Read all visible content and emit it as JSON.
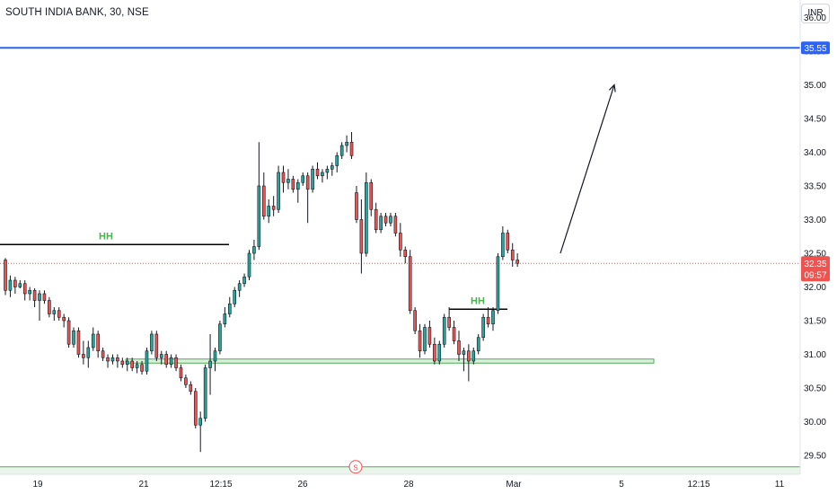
{
  "header": {
    "symbol_title": "SOUTH INDIA BANK, 30, NSE",
    "currency": "INR"
  },
  "chart_data": {
    "type": "candlestick",
    "symbol": "SOUTH INDIA BANK",
    "interval": "30",
    "exchange": "NSE",
    "y_ticks": [
      "36.00",
      "35.50",
      "35.00",
      "34.50",
      "34.00",
      "33.50",
      "33.00",
      "32.50",
      "32.00",
      "31.50",
      "31.00",
      "30.50",
      "30.00",
      "29.50"
    ],
    "x_ticks": [
      "19",
      "21",
      "12:15",
      "26",
      "28",
      "Mar",
      "5",
      "12:15",
      "11"
    ],
    "ylim": [
      29.22,
      36.26
    ],
    "colors": {
      "up": "#26a69a",
      "down": "#ef5350",
      "resistance": "#2962ff",
      "support": "#4caf50",
      "level_line": "#000000",
      "price_tag": "#ef5350"
    },
    "resistance_level": {
      "value": 35.55,
      "label": "35.55"
    },
    "current_price": {
      "value": 32.35,
      "label": "32.35",
      "countdown": "09:57"
    },
    "hh_levels": [
      {
        "label": "HH",
        "value": 32.63
      },
      {
        "label": "HH",
        "value": 31.67
      }
    ],
    "support_zone": {
      "low": 30.87,
      "high": 30.93
    },
    "lower_zone": {
      "value": 29.33,
      "marker": "S"
    },
    "projection_arrow": {
      "from": 32.5,
      "to": 35.0
    },
    "candles": [
      [
        32.4,
        32.43,
        31.88,
        31.95
      ],
      [
        31.95,
        32.17,
        31.85,
        32.1
      ],
      [
        32.1,
        32.15,
        31.9,
        32.0
      ],
      [
        32.0,
        32.1,
        31.98,
        32.05
      ],
      [
        32.05,
        32.1,
        31.8,
        31.9
      ],
      [
        31.9,
        32.0,
        31.8,
        31.95
      ],
      [
        31.95,
        31.98,
        31.7,
        31.8
      ],
      [
        31.8,
        31.95,
        31.5,
        31.9
      ],
      [
        31.9,
        31.95,
        31.75,
        31.8
      ],
      [
        31.8,
        31.85,
        31.55,
        31.6
      ],
      [
        31.6,
        31.7,
        31.5,
        31.65
      ],
      [
        31.65,
        31.7,
        31.5,
        31.55
      ],
      [
        31.55,
        31.6,
        31.4,
        31.5
      ],
      [
        31.5,
        31.55,
        31.1,
        31.15
      ],
      [
        31.15,
        31.4,
        31.1,
        31.35
      ],
      [
        31.35,
        31.4,
        30.95,
        31.0
      ],
      [
        31.0,
        31.2,
        30.85,
        30.95
      ],
      [
        30.95,
        31.2,
        30.8,
        31.1
      ],
      [
        31.1,
        31.4,
        31.05,
        31.3
      ],
      [
        31.3,
        31.35,
        30.95,
        31.05
      ],
      [
        31.05,
        31.1,
        30.9,
        30.95
      ],
      [
        30.95,
        31.0,
        30.8,
        30.9
      ],
      [
        30.9,
        31.0,
        30.85,
        30.95
      ],
      [
        30.95,
        31.0,
        30.8,
        30.9
      ],
      [
        30.9,
        30.95,
        30.8,
        30.85
      ],
      [
        30.85,
        30.95,
        30.75,
        30.9
      ],
      [
        30.9,
        30.95,
        30.75,
        30.8
      ],
      [
        30.8,
        30.9,
        30.72,
        30.85
      ],
      [
        30.85,
        30.9,
        30.7,
        30.75
      ],
      [
        30.75,
        31.1,
        30.7,
        31.05
      ],
      [
        31.05,
        31.35,
        31.0,
        31.3
      ],
      [
        31.3,
        31.35,
        30.9,
        30.95
      ],
      [
        30.95,
        31.05,
        30.85,
        31.0
      ],
      [
        31.0,
        31.05,
        30.8,
        30.85
      ],
      [
        30.85,
        31.0,
        30.8,
        30.95
      ],
      [
        30.95,
        31.0,
        30.75,
        30.8
      ],
      [
        30.8,
        30.85,
        30.6,
        30.65
      ],
      [
        30.65,
        30.7,
        30.5,
        30.55
      ],
      [
        30.55,
        30.6,
        30.4,
        30.45
      ],
      [
        30.45,
        30.5,
        29.9,
        29.95
      ],
      [
        29.95,
        30.15,
        29.55,
        30.05
      ],
      [
        30.05,
        30.85,
        30.0,
        30.8
      ],
      [
        30.8,
        31.3,
        30.4,
        30.9
      ],
      [
        30.9,
        31.1,
        30.75,
        31.05
      ],
      [
        31.05,
        31.5,
        31.0,
        31.45
      ],
      [
        31.45,
        31.7,
        31.4,
        31.6
      ],
      [
        31.6,
        31.85,
        31.55,
        31.75
      ],
      [
        31.75,
        32.0,
        31.7,
        31.95
      ],
      [
        31.95,
        32.1,
        31.85,
        32.05
      ],
      [
        32.05,
        32.2,
        32.0,
        32.15
      ],
      [
        32.15,
        32.55,
        32.1,
        32.5
      ],
      [
        32.5,
        32.7,
        32.4,
        32.6
      ],
      [
        32.6,
        34.15,
        32.55,
        33.5
      ],
      [
        33.5,
        33.7,
        33.0,
        33.05
      ],
      [
        33.05,
        33.3,
        32.95,
        33.2
      ],
      [
        33.2,
        33.35,
        33.05,
        33.15
      ],
      [
        33.15,
        33.8,
        33.1,
        33.7
      ],
      [
        33.7,
        33.8,
        33.4,
        33.55
      ],
      [
        33.55,
        33.75,
        33.45,
        33.6
      ],
      [
        33.6,
        33.65,
        33.4,
        33.45
      ],
      [
        33.45,
        33.6,
        33.25,
        33.55
      ],
      [
        33.55,
        33.7,
        33.5,
        33.65
      ],
      [
        33.65,
        33.7,
        32.95,
        33.45
      ],
      [
        33.45,
        33.8,
        33.4,
        33.75
      ],
      [
        33.75,
        33.85,
        33.6,
        33.65
      ],
      [
        33.65,
        33.75,
        33.55,
        33.7
      ],
      [
        33.7,
        33.8,
        33.6,
        33.75
      ],
      [
        33.75,
        33.85,
        33.65,
        33.8
      ],
      [
        33.8,
        34.0,
        33.7,
        33.95
      ],
      [
        33.95,
        34.15,
        33.9,
        34.1
      ],
      [
        34.1,
        34.25,
        34.0,
        34.15
      ],
      [
        34.15,
        34.3,
        33.9,
        33.95
      ],
      [
        33.4,
        33.5,
        32.95,
        33.0
      ],
      [
        33.0,
        33.3,
        32.2,
        32.5
      ],
      [
        32.5,
        33.7,
        32.45,
        33.55
      ],
      [
        33.55,
        33.6,
        33.05,
        33.15
      ],
      [
        33.15,
        33.25,
        32.8,
        32.85
      ],
      [
        32.85,
        33.1,
        32.8,
        33.05
      ],
      [
        33.05,
        33.1,
        32.9,
        32.95
      ],
      [
        32.95,
        33.1,
        32.9,
        33.05
      ],
      [
        33.05,
        33.1,
        32.75,
        32.8
      ],
      [
        32.8,
        32.95,
        32.45,
        32.55
      ],
      [
        32.55,
        32.6,
        32.35,
        32.45
      ],
      [
        32.45,
        32.55,
        31.6,
        31.65
      ],
      [
        31.65,
        31.7,
        31.3,
        31.35
      ],
      [
        31.35,
        31.45,
        30.95,
        31.05
      ],
      [
        31.05,
        31.45,
        31.0,
        31.4
      ],
      [
        31.4,
        31.5,
        31.1,
        31.15
      ],
      [
        31.15,
        31.25,
        30.85,
        30.9
      ],
      [
        30.9,
        31.2,
        30.85,
        31.15
      ],
      [
        31.15,
        31.6,
        31.1,
        31.55
      ],
      [
        31.55,
        31.7,
        31.35,
        31.4
      ],
      [
        31.4,
        31.5,
        31.15,
        31.2
      ],
      [
        31.2,
        31.35,
        30.9,
        31.0
      ],
      [
        31.0,
        31.1,
        30.75,
        31.05
      ],
      [
        31.05,
        31.15,
        30.6,
        30.9
      ],
      [
        30.9,
        31.1,
        30.85,
        31.05
      ],
      [
        31.05,
        31.3,
        31.0,
        31.25
      ],
      [
        31.25,
        31.6,
        31.2,
        31.55
      ],
      [
        31.55,
        31.7,
        31.4,
        31.45
      ],
      [
        31.45,
        31.7,
        31.35,
        31.65
      ],
      [
        31.65,
        32.5,
        31.6,
        32.45
      ],
      [
        32.45,
        32.9,
        32.4,
        32.8
      ],
      [
        32.8,
        32.85,
        32.5,
        32.55
      ],
      [
        32.55,
        32.65,
        32.3,
        32.4
      ],
      [
        32.4,
        32.5,
        32.3,
        32.35
      ]
    ]
  }
}
